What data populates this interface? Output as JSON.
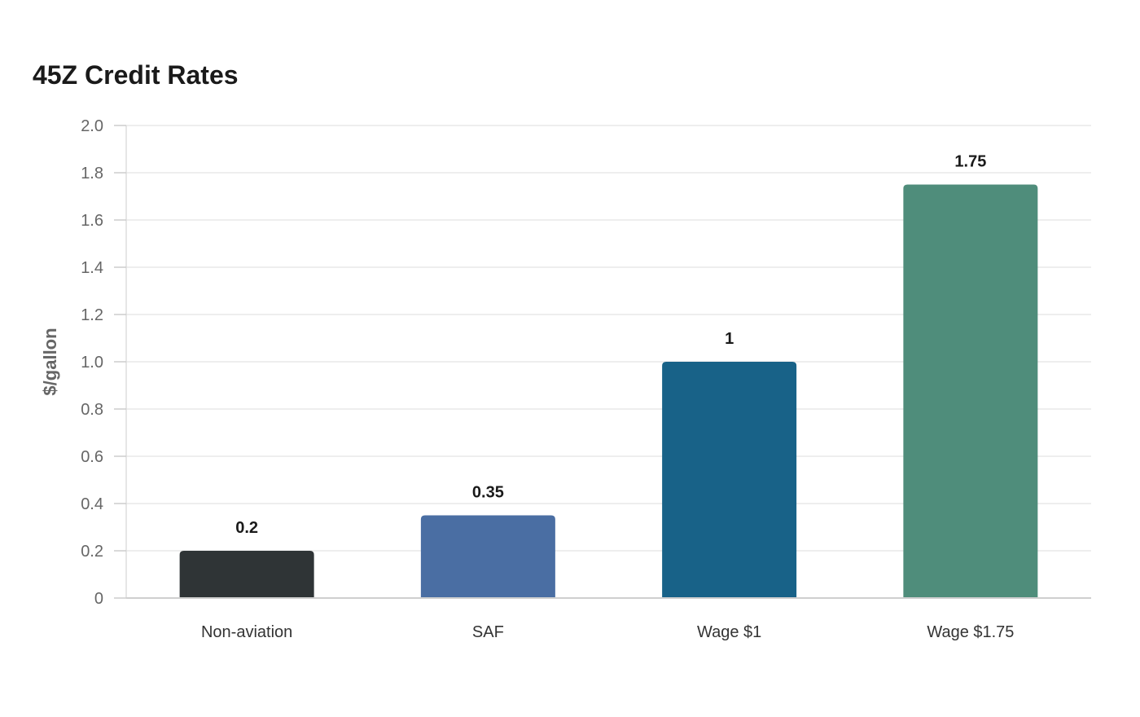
{
  "title": "45Z Credit Rates",
  "chart_data": {
    "type": "bar",
    "title": "45Z Credit Rates",
    "xlabel": "",
    "ylabel": "$/gallon",
    "categories": [
      "Non-aviation",
      "SAF",
      "Wage $1",
      "Wage $1.75"
    ],
    "values": [
      0.2,
      0.35,
      1,
      1.75
    ],
    "data_labels": [
      "0.2",
      "0.35",
      "1",
      "1.75"
    ],
    "colors": [
      "#2f3436",
      "#4a6ea3",
      "#186288",
      "#4f8d7b"
    ],
    "ylim": [
      0,
      2.0
    ],
    "yticks": [
      0,
      0.2,
      0.4,
      0.6,
      0.8,
      1.0,
      1.2,
      1.4,
      1.6,
      1.8,
      2.0
    ],
    "ytick_labels": [
      "0",
      "0.2",
      "0.4",
      "0.6",
      "0.8",
      "1.0",
      "1.2",
      "1.4",
      "1.6",
      "1.8",
      "2.0"
    ],
    "grid": true,
    "legend": false
  }
}
